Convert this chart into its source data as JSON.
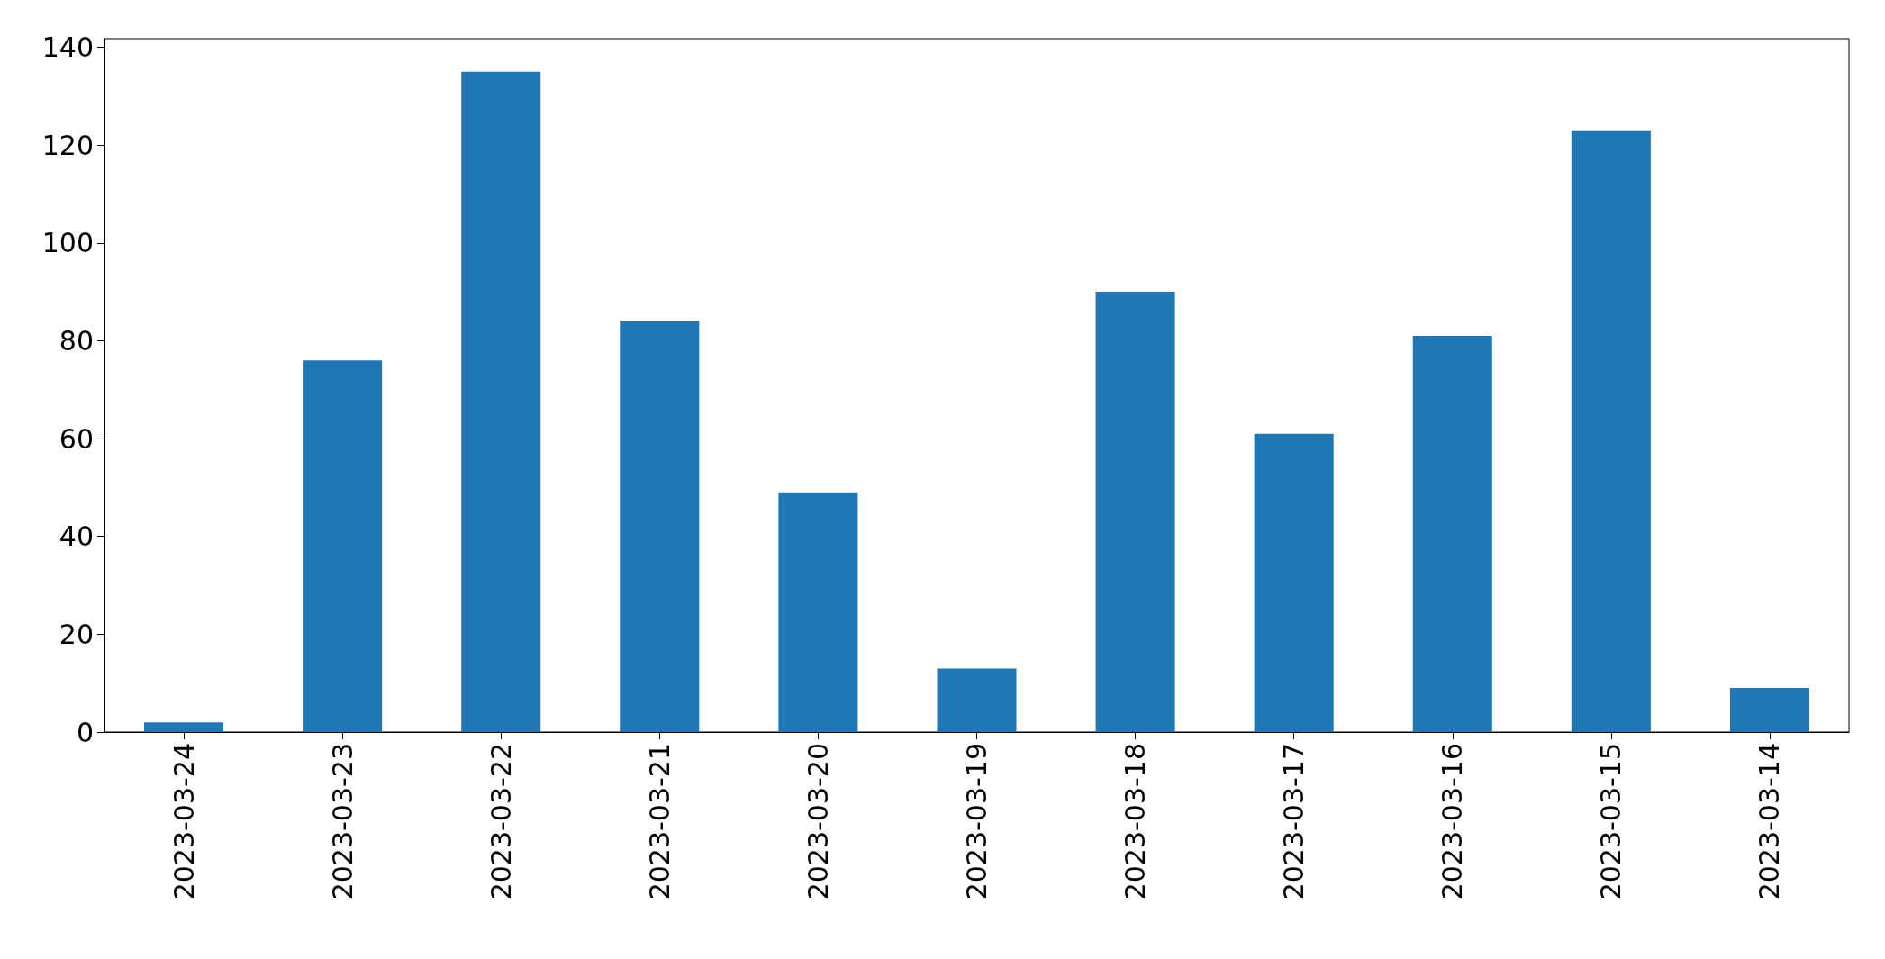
{
  "chart_data": {
    "type": "bar",
    "categories": [
      "2023-03-24",
      "2023-03-23",
      "2023-03-22",
      "2023-03-21",
      "2023-03-20",
      "2023-03-19",
      "2023-03-18",
      "2023-03-17",
      "2023-03-16",
      "2023-03-15",
      "2023-03-14"
    ],
    "values": [
      2,
      76,
      135,
      84,
      49,
      13,
      90,
      61,
      81,
      123,
      9
    ],
    "color": "#1f77b4",
    "ylim": [
      0,
      141.75
    ],
    "yticks": [
      0,
      20,
      40,
      60,
      80,
      100,
      120,
      140
    ]
  }
}
